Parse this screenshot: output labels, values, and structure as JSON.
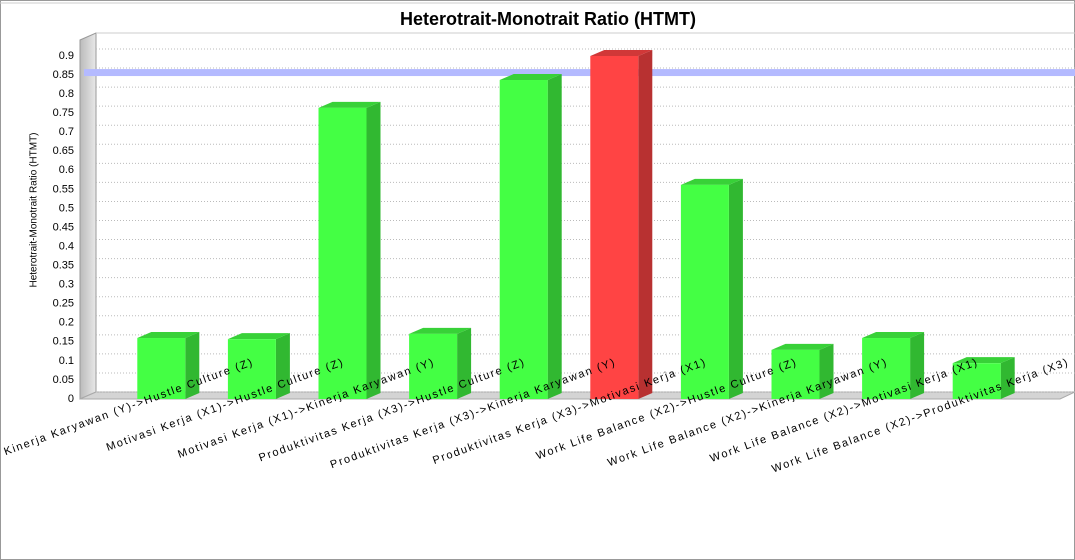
{
  "chart_data": {
    "type": "bar3d",
    "title": "Heterotrait-Monotrait Ratio (HTMT)",
    "y_label": "Heterotrait-Monotrait Ratio (HTMT)",
    "categories": [
      "Kinerja Karyawan (Y)->Hustle Culture (Z)",
      "Motivasi Kerja (X1)->Hustle Culture (Z)",
      "Motivasi Kerja (X1)->Kinerja Karyawan (Y)",
      "Produktivitas Kerja (X3)->Hustle Culture (Z)",
      "Produktivitas Kerja (X3)->Kinerja Karyawan (Y)",
      "Produktivitas Kerja (X3)->Motivasi Kerja (X1)",
      "Work Life Balance (X2)->Hustle Culture (Z)",
      "Work Life Balance (X2)->Kinerja Karyawan (Y)",
      "Work Life Balance (X2)->Motivasi Kerja (X1)",
      "Work Life Balance (X2)->Produktivitas Kerja (X3)"
    ],
    "values": [
      0.16,
      0.157,
      0.764,
      0.171,
      0.837,
      0.9,
      0.562,
      0.129,
      0.16,
      0.094
    ],
    "colors": [
      "#44ff44",
      "#44ff44",
      "#44ff44",
      "#44ff44",
      "#44ff44",
      "#ff4444",
      "#44ff44",
      "#44ff44",
      "#44ff44",
      "#44ff44"
    ],
    "threshold": {
      "value": 0.85,
      "color": "#b4baff"
    },
    "ylim": [
      0,
      0.9
    ],
    "yticks": [
      0,
      0.05,
      0.1,
      0.15,
      0.2,
      0.25,
      0.3,
      0.35,
      0.4,
      0.45,
      0.5,
      0.55,
      0.6,
      0.65,
      0.7,
      0.75,
      0.8,
      0.85,
      0.9
    ],
    "grid": true
  }
}
